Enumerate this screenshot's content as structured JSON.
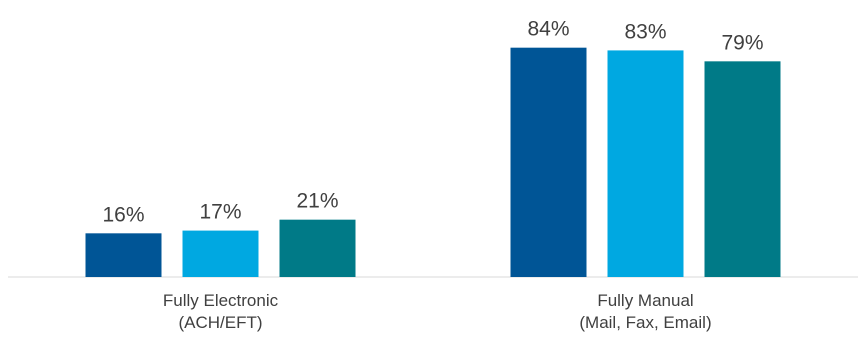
{
  "chart_data": {
    "type": "bar",
    "title": "",
    "xlabel": "",
    "ylabel": "",
    "ylim": [
      0,
      100
    ],
    "grid": false,
    "legend": "none",
    "value_suffix": "%",
    "categories": [
      [
        "Fully Electronic",
        "(ACH/EFT)"
      ],
      [
        "Fully Manual",
        "(Mail, Fax, Email)"
      ]
    ],
    "series": [
      {
        "color": "#005596",
        "values": [
          16,
          84
        ]
      },
      {
        "color": "#00a8e1",
        "values": [
          17,
          83
        ]
      },
      {
        "color": "#007a87",
        "values": [
          21,
          79
        ]
      }
    ],
    "axis_color": "#d9d9d9"
  }
}
